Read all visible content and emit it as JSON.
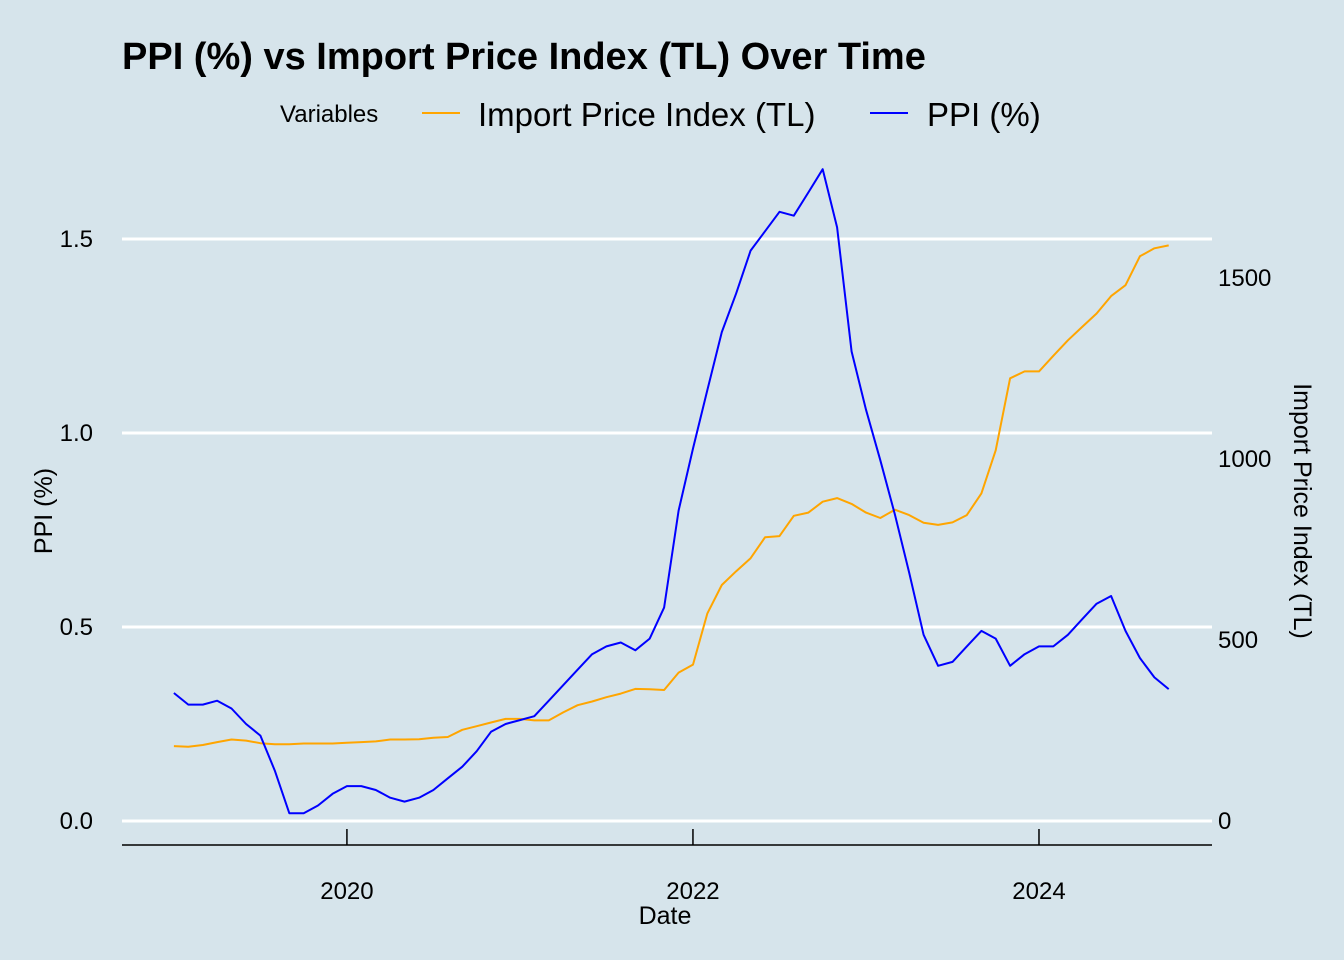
{
  "chart_data": {
    "type": "line",
    "title": "PPI (%) vs Import Price Index (TL) Over Time",
    "xlabel": "Date",
    "ylabel_left": "PPI (%)",
    "ylabel_right": "Import Price Index (TL)",
    "legend_title": "Variables",
    "legend_position": "top",
    "grid": "horizontal",
    "xlim": [
      2018.7,
      2025.0
    ],
    "x_ticks": [
      2020,
      2022,
      2024
    ],
    "x_tick_labels": [
      "2020",
      "2022",
      "2024"
    ],
    "ylim_left": [
      -0.06,
      1.72
    ],
    "y_ticks_left": [
      0.0,
      0.5,
      1.0,
      1.5
    ],
    "y_tick_labels_left": [
      "0.0",
      "0.5",
      "1.0",
      "1.5"
    ],
    "y_ticks_right": [
      0,
      500,
      1000,
      1500
    ],
    "y_tick_labels_right": [
      "0",
      "500",
      "1000",
      "1500"
    ],
    "x": [
      2019.0,
      2019.083,
      2019.167,
      2019.25,
      2019.333,
      2019.417,
      2019.5,
      2019.583,
      2019.667,
      2019.75,
      2019.833,
      2019.917,
      2020.0,
      2020.083,
      2020.167,
      2020.25,
      2020.333,
      2020.417,
      2020.5,
      2020.583,
      2020.667,
      2020.75,
      2020.833,
      2020.917,
      2021.0,
      2021.083,
      2021.167,
      2021.25,
      2021.333,
      2021.417,
      2021.5,
      2021.583,
      2021.667,
      2021.75,
      2021.833,
      2021.917,
      2022.0,
      2022.083,
      2022.167,
      2022.25,
      2022.333,
      2022.417,
      2022.5,
      2022.583,
      2022.667,
      2022.75,
      2022.833,
      2022.917,
      2023.0,
      2023.083,
      2023.167,
      2023.25,
      2023.333,
      2023.417,
      2023.5,
      2023.583,
      2023.667,
      2023.75,
      2023.833,
      2023.917,
      2024.0,
      2024.083,
      2024.167,
      2024.25,
      2024.333,
      2024.417,
      2024.5,
      2024.583,
      2024.667,
      2024.75
    ],
    "series": [
      {
        "name": "Import Price Index (TL)",
        "color": "#ffa500",
        "axis": "right",
        "values": [
          207,
          205,
          210,
          218,
          225,
          222,
          215,
          212,
          212,
          214,
          214,
          214,
          216,
          218,
          220,
          225,
          225,
          226,
          230,
          232,
          252,
          262,
          272,
          282,
          282,
          278,
          278,
          300,
          320,
          330,
          342,
          352,
          365,
          364,
          362,
          410,
          432,
          573,
          652,
          690,
          726,
          784,
          787,
          843,
          852,
          882,
          892,
          876,
          852,
          837,
          860,
          845,
          824,
          818,
          825,
          845,
          905,
          1024,
          1223,
          1242,
          1242,
          1285,
          1328,
          1365,
          1402,
          1450,
          1480,
          1560,
          1582,
          1590
        ]
      },
      {
        "name": "PPI (%)",
        "color": "#0000ff",
        "axis": "left",
        "values": [
          0.33,
          0.3,
          0.3,
          0.31,
          0.29,
          0.25,
          0.22,
          0.13,
          0.02,
          0.02,
          0.04,
          0.07,
          0.09,
          0.09,
          0.08,
          0.06,
          0.05,
          0.06,
          0.08,
          0.11,
          0.14,
          0.18,
          0.23,
          0.25,
          0.26,
          0.27,
          0.31,
          0.35,
          0.39,
          0.43,
          0.45,
          0.46,
          0.44,
          0.47,
          0.55,
          0.8,
          0.96,
          1.11,
          1.26,
          1.36,
          1.47,
          1.52,
          1.57,
          1.56,
          1.62,
          1.68,
          1.53,
          1.21,
          1.06,
          0.93,
          0.79,
          0.64,
          0.48,
          0.4,
          0.41,
          0.45,
          0.49,
          0.47,
          0.4,
          0.43,
          0.45,
          0.45,
          0.48,
          0.52,
          0.56,
          0.58,
          0.49,
          0.42,
          0.37,
          0.34
        ]
      }
    ]
  }
}
